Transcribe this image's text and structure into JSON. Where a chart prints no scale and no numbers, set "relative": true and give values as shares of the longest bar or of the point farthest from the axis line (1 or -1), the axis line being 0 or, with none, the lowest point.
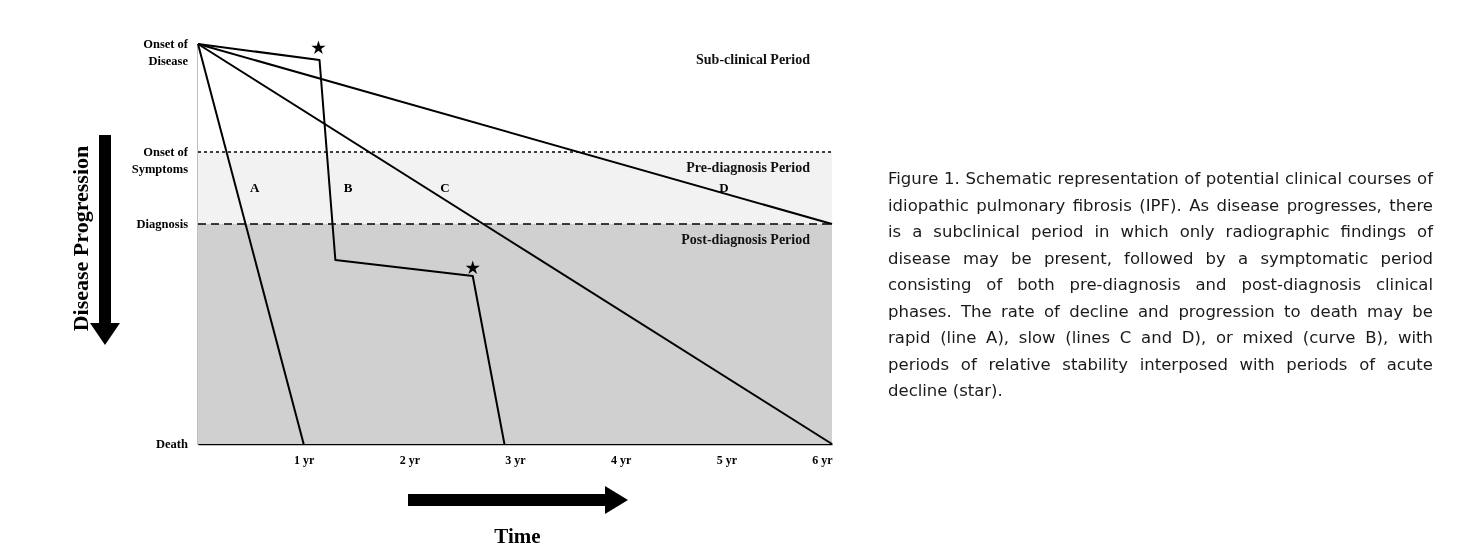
{
  "chart_data": {
    "type": "line",
    "xlabel": "Time",
    "ylabel": "Disease Progression",
    "relative": true,
    "xlim": [
      0,
      6
    ],
    "xticks": [
      {
        "value": 1,
        "label": "1 yr"
      },
      {
        "value": 2,
        "label": "2 yr"
      },
      {
        "value": 3,
        "label": "3 yr"
      },
      {
        "value": 4,
        "label": "4 yr"
      },
      {
        "value": 5,
        "label": "5 yr"
      },
      {
        "value": 6,
        "label": "6 yr"
      }
    ],
    "series": [
      {
        "name": "A",
        "color": "#000000",
        "x": [
          0,
          1
        ],
        "values": [
          1,
          0
        ]
      },
      {
        "name": "B",
        "color": "#000000",
        "x": [
          0,
          1.15,
          1.3,
          2.6,
          2.9
        ],
        "values": [
          1,
          0.96,
          0.46,
          0.42,
          0
        ]
      },
      {
        "name": "C",
        "color": "#000000",
        "x": [
          0,
          6
        ],
        "values": [
          1,
          0
        ]
      },
      {
        "name": "D",
        "color": "#000000",
        "x": [
          0,
          6
        ],
        "values": [
          1,
          0.55
        ]
      },
      {
        "type": "scatter",
        "marker": "star",
        "color": "#000000",
        "x": [
          1.14,
          2.6
        ],
        "values": [
          0.99,
          0.44
        ]
      }
    ],
    "bands": [
      {
        "axis": "y",
        "from": 0.73,
        "to": 1,
        "label": "Sub-clinical Period",
        "color": "#ffffff"
      },
      {
        "axis": "y",
        "from": 0.55,
        "to": 0.73,
        "label": "Pre-diagnosis Period",
        "color": "#f2f2f2"
      },
      {
        "axis": "y",
        "from": 0,
        "to": 0.55,
        "label": "Post-diagnosis Period",
        "color": "#d0d0d0"
      }
    ],
    "ref_lines": [
      {
        "axis": "y",
        "value": 0.73,
        "line_style": "dotted",
        "label": "Onset of Symptoms"
      },
      {
        "axis": "y",
        "value": 0.55,
        "line_style": "dashed",
        "label": "Diagnosis"
      }
    ],
    "annotations": [
      {
        "text": "Onset of Disease",
        "x": 0,
        "y": 1
      },
      {
        "text": "Death",
        "x": 0,
        "y": 0
      },
      "Figure 1. Schematic representation of potential clinical courses of idiopathic pulmonary fibrosis (IPF). As disease progresses, there is a subclinical period in which only radiographic findings of disease may be present, followed by a symptomatic period consisting of both pre-diagnosis and post-diagnosis clinical phases. The rate of decline and progression to death may be rapid (line A), slow (lines C and D), or mixed (curve B), with periods of relative stability interposed with periods of acute decline (star)."
    ],
    "line_style": "solid"
  }
}
